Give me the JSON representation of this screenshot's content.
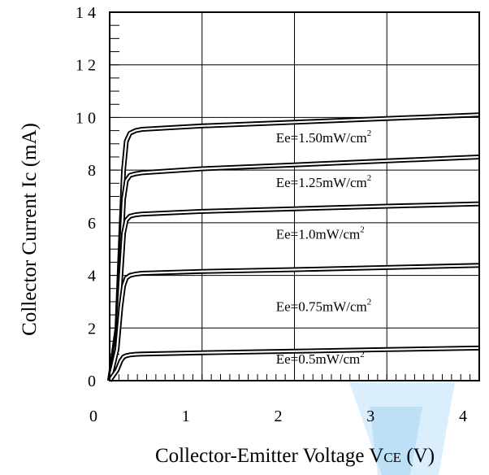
{
  "chart_data": {
    "type": "line",
    "title": "",
    "xlabel": "Collector-Emitter Voltage VCE (V)",
    "xlabel_main": "Collector-Emitter Voltage V",
    "xlabel_sub": "CE",
    "xlabel_unit": " (V)",
    "ylabel": "Collector Current Ic (mA)",
    "xlim": [
      0,
      4
    ],
    "ylim": [
      0,
      14
    ],
    "x_ticks": [
      0,
      1,
      2,
      3,
      4
    ],
    "x_tick_labels": [
      "0",
      "1",
      "2",
      "3",
      "4"
    ],
    "y_ticks": [
      0,
      2,
      4,
      6,
      8,
      10,
      12,
      14
    ],
    "y_tick_labels": [
      "0",
      "2",
      "4",
      "6",
      "8",
      "1 0",
      "1 2",
      "1 4"
    ],
    "grid": true,
    "legend": "none",
    "series": [
      {
        "name": "Ee=1.50mW/cm2",
        "label_main": "Ee=1.50mW/cm",
        "label_sup": "2",
        "label_at": [
          1.8,
          9.05
        ],
        "x": [
          0.0,
          0.08,
          0.12,
          0.15,
          0.18,
          0.22,
          0.28,
          0.35,
          1.0,
          2.0,
          3.0,
          4.0
        ],
        "y": [
          0.0,
          2.0,
          5.5,
          8.0,
          9.1,
          9.4,
          9.5,
          9.55,
          9.68,
          9.82,
          9.96,
          10.1
        ]
      },
      {
        "name": "Ee=1.25mW/cm2",
        "label_main": "Ee=1.25mW/cm",
        "label_sup": "2",
        "label_at": [
          1.8,
          7.35
        ],
        "x": [
          0.0,
          0.08,
          0.12,
          0.15,
          0.18,
          0.22,
          0.28,
          0.35,
          1.0,
          2.0,
          3.0,
          4.0
        ],
        "y": [
          0.0,
          1.8,
          4.8,
          6.9,
          7.6,
          7.8,
          7.86,
          7.9,
          8.05,
          8.2,
          8.35,
          8.5
        ]
      },
      {
        "name": "Ee=1.0mW/cm2",
        "label_main": "Ee=1.0mW/cm",
        "label_sup": "2",
        "label_at": [
          1.8,
          5.4
        ],
        "x": [
          0.0,
          0.08,
          0.12,
          0.15,
          0.18,
          0.22,
          0.28,
          0.35,
          1.0,
          2.0,
          3.0,
          4.0
        ],
        "y": [
          0.0,
          1.6,
          4.0,
          5.6,
          6.1,
          6.25,
          6.3,
          6.33,
          6.43,
          6.53,
          6.63,
          6.72
        ]
      },
      {
        "name": "Ee=0.75mW/cm2",
        "label_main": "Ee=0.75mW/cm",
        "label_sup": "2",
        "label_at": [
          1.8,
          2.65
        ],
        "x": [
          0.0,
          0.08,
          0.12,
          0.15,
          0.18,
          0.22,
          0.28,
          0.35,
          1.0,
          2.0,
          3.0,
          4.0
        ],
        "y": [
          0.0,
          1.2,
          2.8,
          3.6,
          3.9,
          4.0,
          4.05,
          4.08,
          4.15,
          4.22,
          4.3,
          4.38
        ]
      },
      {
        "name": "Ee=0.5mW/cm2",
        "label_main": "Ee=0.5mW/cm",
        "label_sup": "2",
        "label_at": [
          1.8,
          0.65
        ],
        "x": [
          0.0,
          0.08,
          0.12,
          0.15,
          0.18,
          0.22,
          0.28,
          0.35,
          1.0,
          2.0,
          3.0,
          4.0
        ],
        "y": [
          0.0,
          0.4,
          0.75,
          0.9,
          0.95,
          0.98,
          1.0,
          1.01,
          1.06,
          1.12,
          1.18,
          1.24
        ]
      }
    ]
  }
}
